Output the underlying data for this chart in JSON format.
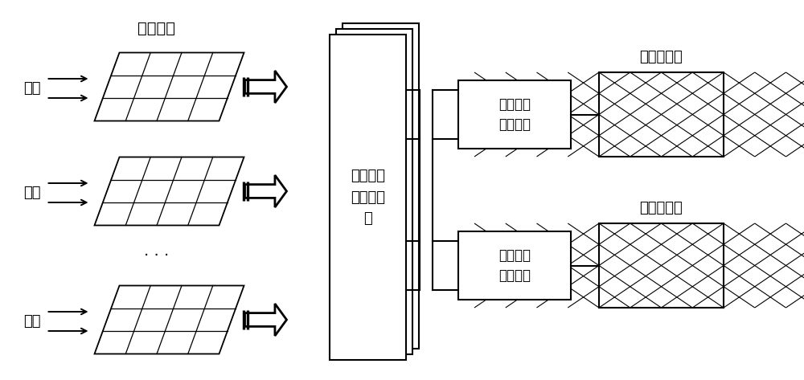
{
  "bg_color": "#ffffff",
  "pv_array_label": "光伏阵列",
  "light_label": "光照",
  "converter_label": "光伏直流\n升压变流\n器",
  "dc_interface_label": "直流站级\n接口电路",
  "ac_interface_label": "交流站级\n接口电路",
  "dc_grid_label": "直流配电网",
  "ac_grid_label": "交流配电网",
  "dots_label": "···",
  "line_color": "#000000",
  "text_color": "#000000",
  "pv_rows": 3,
  "pv_cols": 4,
  "font_size_label": 13,
  "font_size_title": 13
}
